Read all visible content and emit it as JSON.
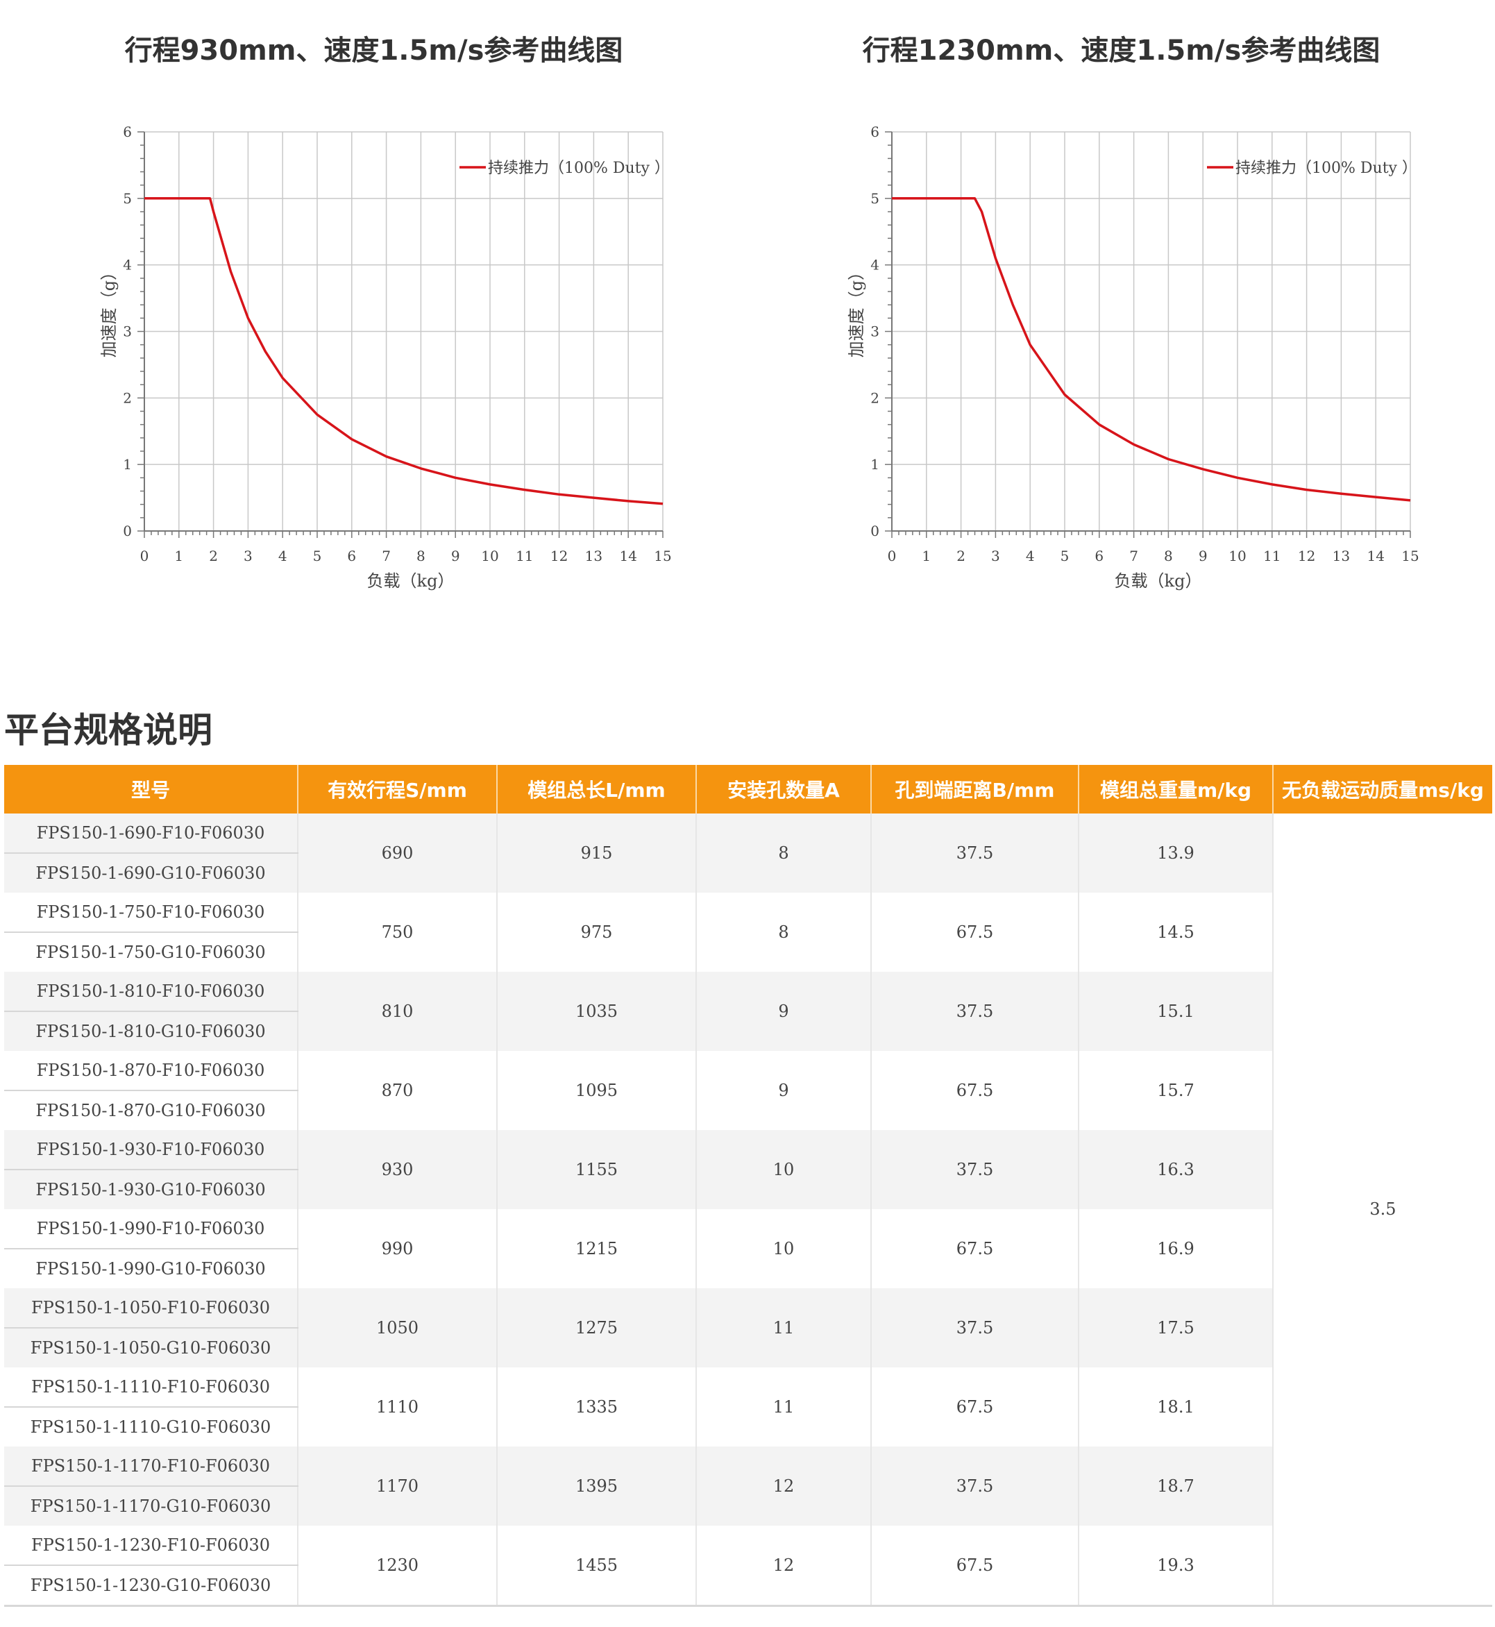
{
  "charts": [
    {
      "title": "行程930mm、速度1.5m/s参考曲线图",
      "legend": "持续推力（100% Duty ）",
      "xlabel": "负载（kg）",
      "ylabel": "加速度（g）",
      "x_ticks": [
        "0",
        "1",
        "2",
        "3",
        "4",
        "5",
        "6",
        "7",
        "8",
        "9",
        "10",
        "11",
        "12",
        "13",
        "14",
        "15"
      ],
      "y_ticks": [
        "0",
        "1",
        "2",
        "3",
        "4",
        "5",
        "6"
      ]
    },
    {
      "title": "行程1230mm、速度1.5m/s参考曲线图",
      "legend": "持续推力（100% Duty ）",
      "xlabel": "负载（kg）",
      "ylabel": "加速度（g）",
      "x_ticks": [
        "0",
        "1",
        "2",
        "3",
        "4",
        "5",
        "6",
        "7",
        "8",
        "9",
        "10",
        "11",
        "12",
        "13",
        "14",
        "15"
      ],
      "y_ticks": [
        "0",
        "1",
        "2",
        "3",
        "4",
        "5",
        "6"
      ]
    }
  ],
  "chart_data": [
    {
      "type": "line",
      "title": "行程930mm、速度1.5m/s参考曲线图",
      "xlabel": "负载（kg）",
      "ylabel": "加速度（g）",
      "xlim": [
        0,
        15
      ],
      "ylim": [
        0,
        6
      ],
      "grid": true,
      "legend_position": "top-right",
      "series_color": "#d7141a",
      "series": [
        {
          "name": "持续推力（100% Duty ）",
          "x": [
            0,
            1,
            1.9,
            2,
            2.5,
            3,
            3.5,
            4,
            5,
            6,
            7,
            8,
            9,
            10,
            11,
            12,
            13,
            14,
            15
          ],
          "y": [
            5,
            5,
            5,
            4.8,
            3.9,
            3.2,
            2.7,
            2.3,
            1.75,
            1.38,
            1.12,
            0.94,
            0.8,
            0.7,
            0.62,
            0.55,
            0.5,
            0.45,
            0.41
          ]
        }
      ]
    },
    {
      "type": "line",
      "title": "行程1230mm、速度1.5m/s参考曲线图",
      "xlabel": "负载（kg）",
      "ylabel": "加速度（g）",
      "xlim": [
        0,
        15
      ],
      "ylim": [
        0,
        6
      ],
      "grid": true,
      "legend_position": "top-right",
      "series_color": "#d7141a",
      "series": [
        {
          "name": "持续推力（100% Duty ）",
          "x": [
            0,
            1,
            2,
            2.4,
            2.6,
            3,
            3.5,
            4,
            5,
            6,
            7,
            8,
            9,
            10,
            11,
            12,
            13,
            14,
            15
          ],
          "y": [
            5,
            5,
            5,
            5,
            4.8,
            4.1,
            3.4,
            2.8,
            2.05,
            1.6,
            1.3,
            1.08,
            0.93,
            0.8,
            0.7,
            0.62,
            0.56,
            0.51,
            0.46
          ]
        }
      ]
    }
  ],
  "spec": {
    "title": "平台规格说明",
    "headers": [
      "型号",
      "有效行程S/mm",
      "模组总长L/mm",
      "安装孔数量A",
      "孔到端距离B/mm",
      "模组总重量m/kg",
      "无负载运动质量ms/kg"
    ],
    "moving_mass": "3.5",
    "groups": [
      {
        "models": [
          "FPS150-1-690-F10-F06030",
          "FPS150-1-690-G10-F06030"
        ],
        "stroke": "690",
        "length": "915",
        "holes": "8",
        "distance": "37.5",
        "weight": "13.9"
      },
      {
        "models": [
          "FPS150-1-750-F10-F06030",
          "FPS150-1-750-G10-F06030"
        ],
        "stroke": "750",
        "length": "975",
        "holes": "8",
        "distance": "67.5",
        "weight": "14.5"
      },
      {
        "models": [
          "FPS150-1-810-F10-F06030",
          "FPS150-1-810-G10-F06030"
        ],
        "stroke": "810",
        "length": "1035",
        "holes": "9",
        "distance": "37.5",
        "weight": "15.1"
      },
      {
        "models": [
          "FPS150-1-870-F10-F06030",
          "FPS150-1-870-G10-F06030"
        ],
        "stroke": "870",
        "length": "1095",
        "holes": "9",
        "distance": "67.5",
        "weight": "15.7"
      },
      {
        "models": [
          "FPS150-1-930-F10-F06030",
          "FPS150-1-930-G10-F06030"
        ],
        "stroke": "930",
        "length": "1155",
        "holes": "10",
        "distance": "37.5",
        "weight": "16.3"
      },
      {
        "models": [
          "FPS150-1-990-F10-F06030",
          "FPS150-1-990-G10-F06030"
        ],
        "stroke": "990",
        "length": "1215",
        "holes": "10",
        "distance": "67.5",
        "weight": "16.9"
      },
      {
        "models": [
          "FPS150-1-1050-F10-F06030",
          "FPS150-1-1050-G10-F06030"
        ],
        "stroke": "1050",
        "length": "1275",
        "holes": "11",
        "distance": "37.5",
        "weight": "17.5"
      },
      {
        "models": [
          "FPS150-1-1110-F10-F06030",
          "FPS150-1-1110-G10-F06030"
        ],
        "stroke": "1110",
        "length": "1335",
        "holes": "11",
        "distance": "67.5",
        "weight": "18.1"
      },
      {
        "models": [
          "FPS150-1-1170-F10-F06030",
          "FPS150-1-1170-G10-F06030"
        ],
        "stroke": "1170",
        "length": "1395",
        "holes": "12",
        "distance": "37.5",
        "weight": "18.7"
      },
      {
        "models": [
          "FPS150-1-1230-F10-F06030",
          "FPS150-1-1230-G10-F06030"
        ],
        "stroke": "1230",
        "length": "1455",
        "holes": "12",
        "distance": "67.5",
        "weight": "19.3"
      }
    ],
    "colors": {
      "header_bg": "#f5940f",
      "header_text": "#ffffff",
      "row_shade": "#f3f3f3"
    }
  }
}
